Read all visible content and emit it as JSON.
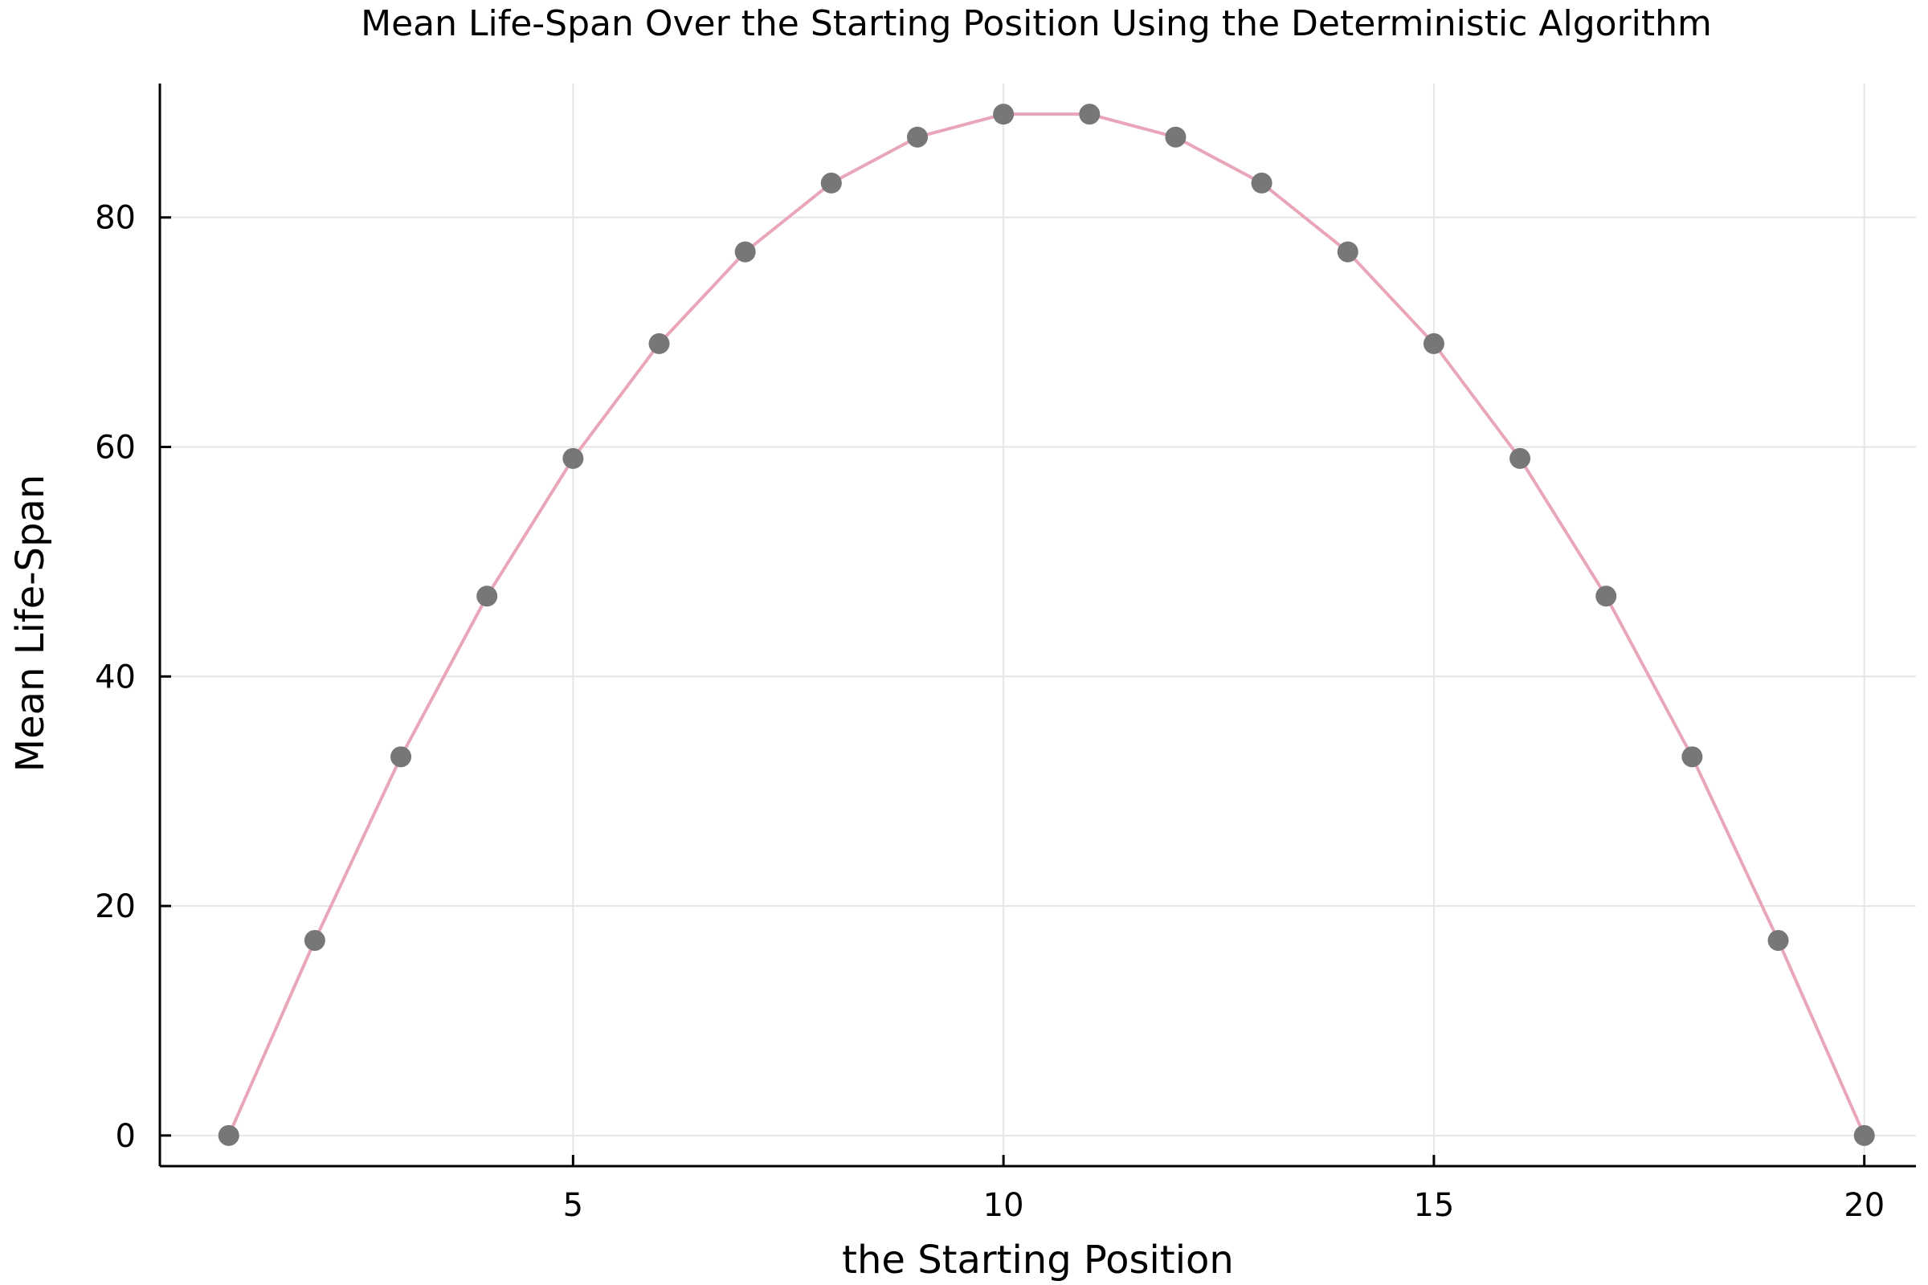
{
  "chart_data": {
    "type": "line",
    "title": "Mean Life-Span Over the Starting Position Using the Deterministic Algorithm",
    "xlabel": "the Starting Position",
    "ylabel": "Mean Life-Span",
    "x": [
      1,
      2,
      3,
      4,
      5,
      6,
      7,
      8,
      9,
      10,
      11,
      12,
      13,
      14,
      15,
      16,
      17,
      18,
      19,
      20
    ],
    "series": [
      {
        "values": [
          0,
          17,
          33,
          47,
          59,
          69,
          77,
          83,
          87,
          89,
          89,
          87,
          83,
          77,
          69,
          59,
          47,
          33,
          17,
          0
        ],
        "line_color": "#eaa6b9",
        "marker_color": "#777777"
      }
    ],
    "xlim": [
      0.2,
      20.6
    ],
    "ylim": [
      -2.67,
      91.67
    ],
    "xticks": [
      5,
      10,
      15,
      20
    ],
    "xtick_labels": [
      "5",
      "10",
      "15",
      "20"
    ],
    "yticks": [
      0,
      20,
      40,
      60,
      80
    ],
    "ytick_labels": [
      "0",
      "20",
      "40",
      "60",
      "80"
    ],
    "grid": true,
    "legend": "none"
  }
}
